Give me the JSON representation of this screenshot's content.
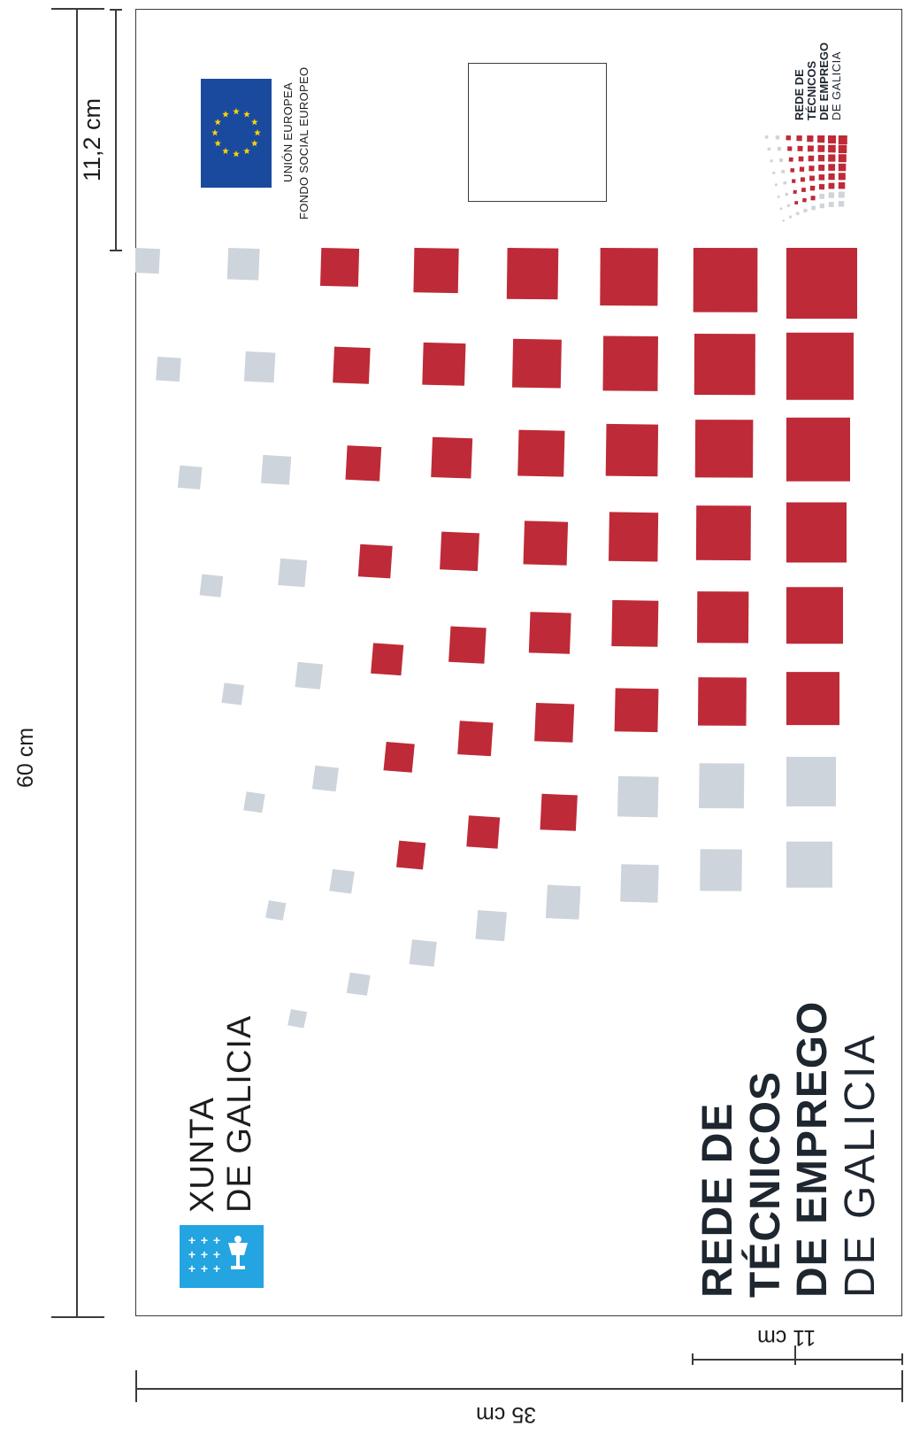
{
  "dimensions": {
    "height_total": "60 cm",
    "height_header": "11,2 cm",
    "width_total": "35 cm",
    "width_brand": "11 cm"
  },
  "eu_logo": {
    "line1": "UNIÓN EUROPEA",
    "line2": "FONDO SOCIAL EUROPEO",
    "flag_color": "#1a4a9e",
    "star_color": "#ffd400"
  },
  "small_logo": {
    "line1": "REDE DE",
    "line2": "TÉCNICOS",
    "line3": "DE EMPREGO",
    "line4": "DE GALICIA"
  },
  "main_title": {
    "line1": "REDE DE",
    "line2": "TÉCNICOS",
    "line3": "DE EMPREGO",
    "line4": "DE GALICIA"
  },
  "xunta": {
    "line1": "XUNTA",
    "line2": "DE GALICIA",
    "emblem_color": "#24a4e0"
  },
  "colors": {
    "red": "#be2a37",
    "grey": "#ced4db",
    "text": "#1e2630"
  }
}
